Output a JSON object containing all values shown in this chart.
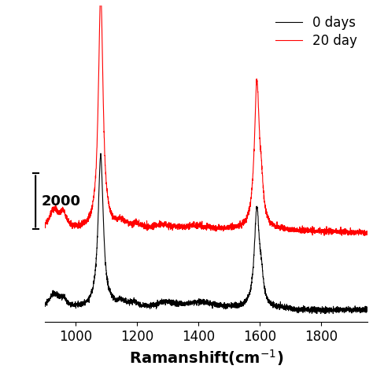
{
  "xlabel_display": "Ramanshift(cm$^{-1}$)",
  "xmin": 900,
  "xmax": 1950,
  "legend_labels": [
    "0 days",
    "20 day"
  ],
  "legend_colors": [
    "black",
    "red"
  ],
  "scale_bar_value": "2000",
  "background_color": "#ffffff",
  "line_width": 0.8,
  "black_baseline": 0,
  "red_baseline": 2800,
  "ylim_min": -300,
  "ylim_max": 11000,
  "xticks": [
    1000,
    1200,
    1400,
    1600,
    1800
  ],
  "xlabel_fontsize": 14,
  "tick_fontsize": 12,
  "legend_fontsize": 12,
  "noise_black": 50,
  "noise_red": 55
}
